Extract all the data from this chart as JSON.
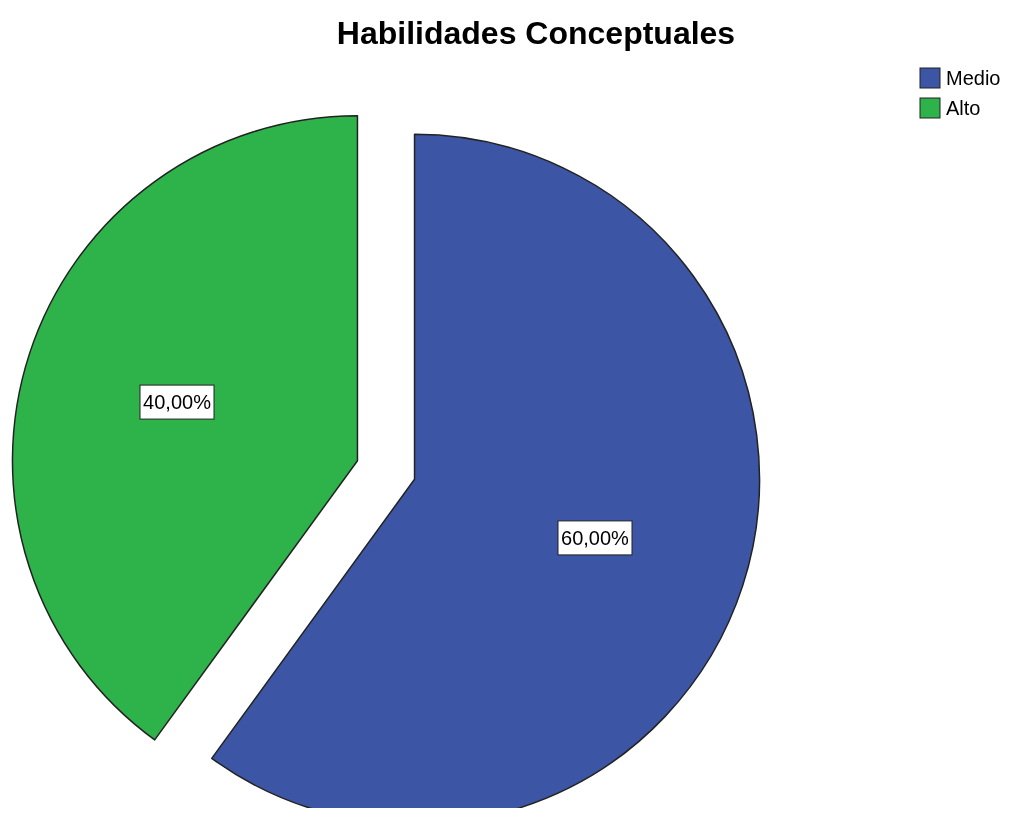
{
  "chart_data": {
    "type": "pie",
    "title": "Habilidades Conceptuales",
    "categories": [
      "Medio",
      "Alto"
    ],
    "values": [
      60,
      40
    ],
    "colors": [
      "#3c55a5",
      "#2db34a"
    ],
    "value_labels": [
      "60,00%",
      "40,00%"
    ],
    "legend": "top right"
  }
}
